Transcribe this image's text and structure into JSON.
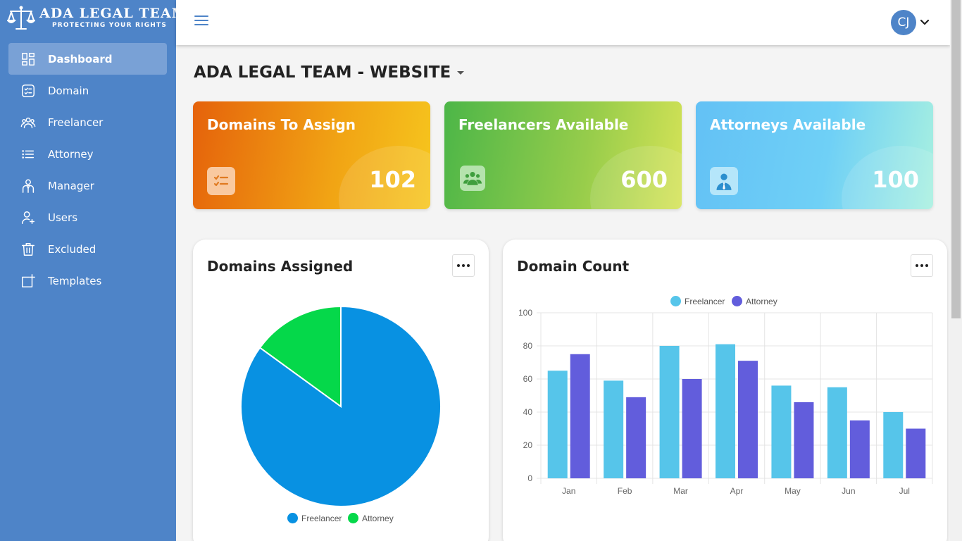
{
  "brand": {
    "title": "ADA LEGAL TEAM",
    "subtitle": "PROTECTING YOUR RIGHTS"
  },
  "sidebar": {
    "items": [
      {
        "label": "Dashboard",
        "icon": "dashboard-icon",
        "active": true
      },
      {
        "label": "Domain",
        "icon": "checklist-icon"
      },
      {
        "label": "Freelancer",
        "icon": "people-icon"
      },
      {
        "label": "Attorney",
        "icon": "list-icon"
      },
      {
        "label": "Manager",
        "icon": "manager-icon"
      },
      {
        "label": "Users",
        "icon": "add-user-icon"
      },
      {
        "label": "Excluded",
        "icon": "trash-icon"
      },
      {
        "label": "Templates",
        "icon": "add-template-icon"
      }
    ]
  },
  "header": {
    "avatar_initials": "CJ"
  },
  "page": {
    "title": "ADA LEGAL TEAM - WEBSITE"
  },
  "cards": [
    {
      "title": "Domains To Assign",
      "value": "102",
      "icon": "checklist-icon"
    },
    {
      "title": "Freelancers Available",
      "value": "600",
      "icon": "group-icon"
    },
    {
      "title": "Attorneys Available",
      "value": "100",
      "icon": "attorney-icon"
    }
  ],
  "colors": {
    "sidebar": "#4e84c8",
    "freelancer_pie": "#0891e2",
    "attorney_pie": "#05d84a",
    "freelancer_bar": "#56c5ea",
    "attorney_bar": "#625ddc"
  },
  "panels": {
    "domains_assigned": {
      "title": "Domains Assigned"
    },
    "domain_count": {
      "title": "Domain Count"
    }
  },
  "chart_data": [
    {
      "type": "pie",
      "title": "Domains Assigned",
      "categories": [
        "Freelancer",
        "Attorney"
      ],
      "values": [
        85,
        15
      ],
      "legend": "bottom"
    },
    {
      "type": "bar",
      "title": "Domain Count",
      "categories": [
        "Jan",
        "Feb",
        "Mar",
        "Apr",
        "May",
        "Jun",
        "Jul"
      ],
      "series": [
        {
          "name": "Freelancer",
          "values": [
            65,
            59,
            80,
            81,
            56,
            55,
            40
          ]
        },
        {
          "name": "Attorney",
          "values": [
            75,
            49,
            60,
            71,
            46,
            35,
            30
          ]
        }
      ],
      "ylim": [
        0,
        100
      ],
      "yticks": [
        "0",
        "20",
        "40",
        "60",
        "80",
        "100"
      ],
      "grid": true,
      "legend": "top"
    }
  ]
}
